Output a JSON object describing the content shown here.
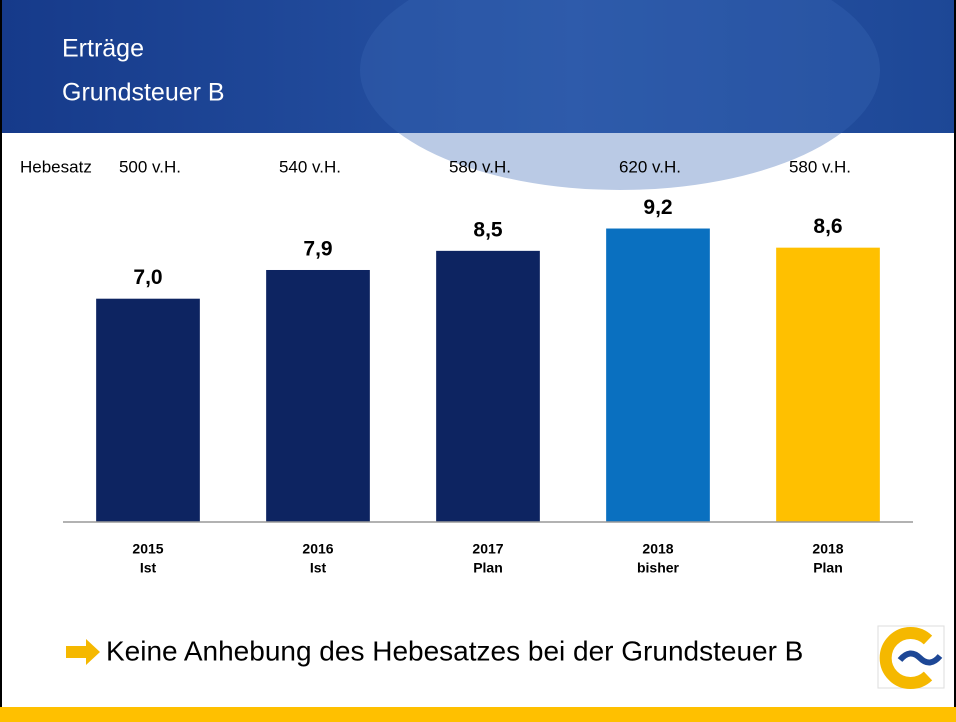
{
  "chart_data": {
    "type": "bar",
    "title": [
      "Erträge",
      "Grundsteuer B"
    ],
    "rate_label": "Hebesatz",
    "rates": [
      "500 v.H.",
      "540 v.H.",
      "580 v.H.",
      "620 v.H.",
      "580 v.H."
    ],
    "categories": [
      [
        "2015",
        "Ist"
      ],
      [
        "2016",
        "Ist"
      ],
      [
        "2017",
        "Plan"
      ],
      [
        "2018",
        "bisher"
      ],
      [
        "2018",
        "Plan"
      ]
    ],
    "values": [
      7.0,
      7.9,
      8.5,
      9.2,
      8.6
    ],
    "value_labels": [
      "7,0",
      "7,9",
      "8,5",
      "9,2",
      "8,6"
    ],
    "colors": [
      "#0d2461",
      "#0d2461",
      "#0d2461",
      "#0a70c0",
      "#ffc000"
    ],
    "ylim": [
      0,
      10
    ],
    "footnote": "Keine Anhebung des Hebesatzes bei der Grundsteuer B"
  }
}
